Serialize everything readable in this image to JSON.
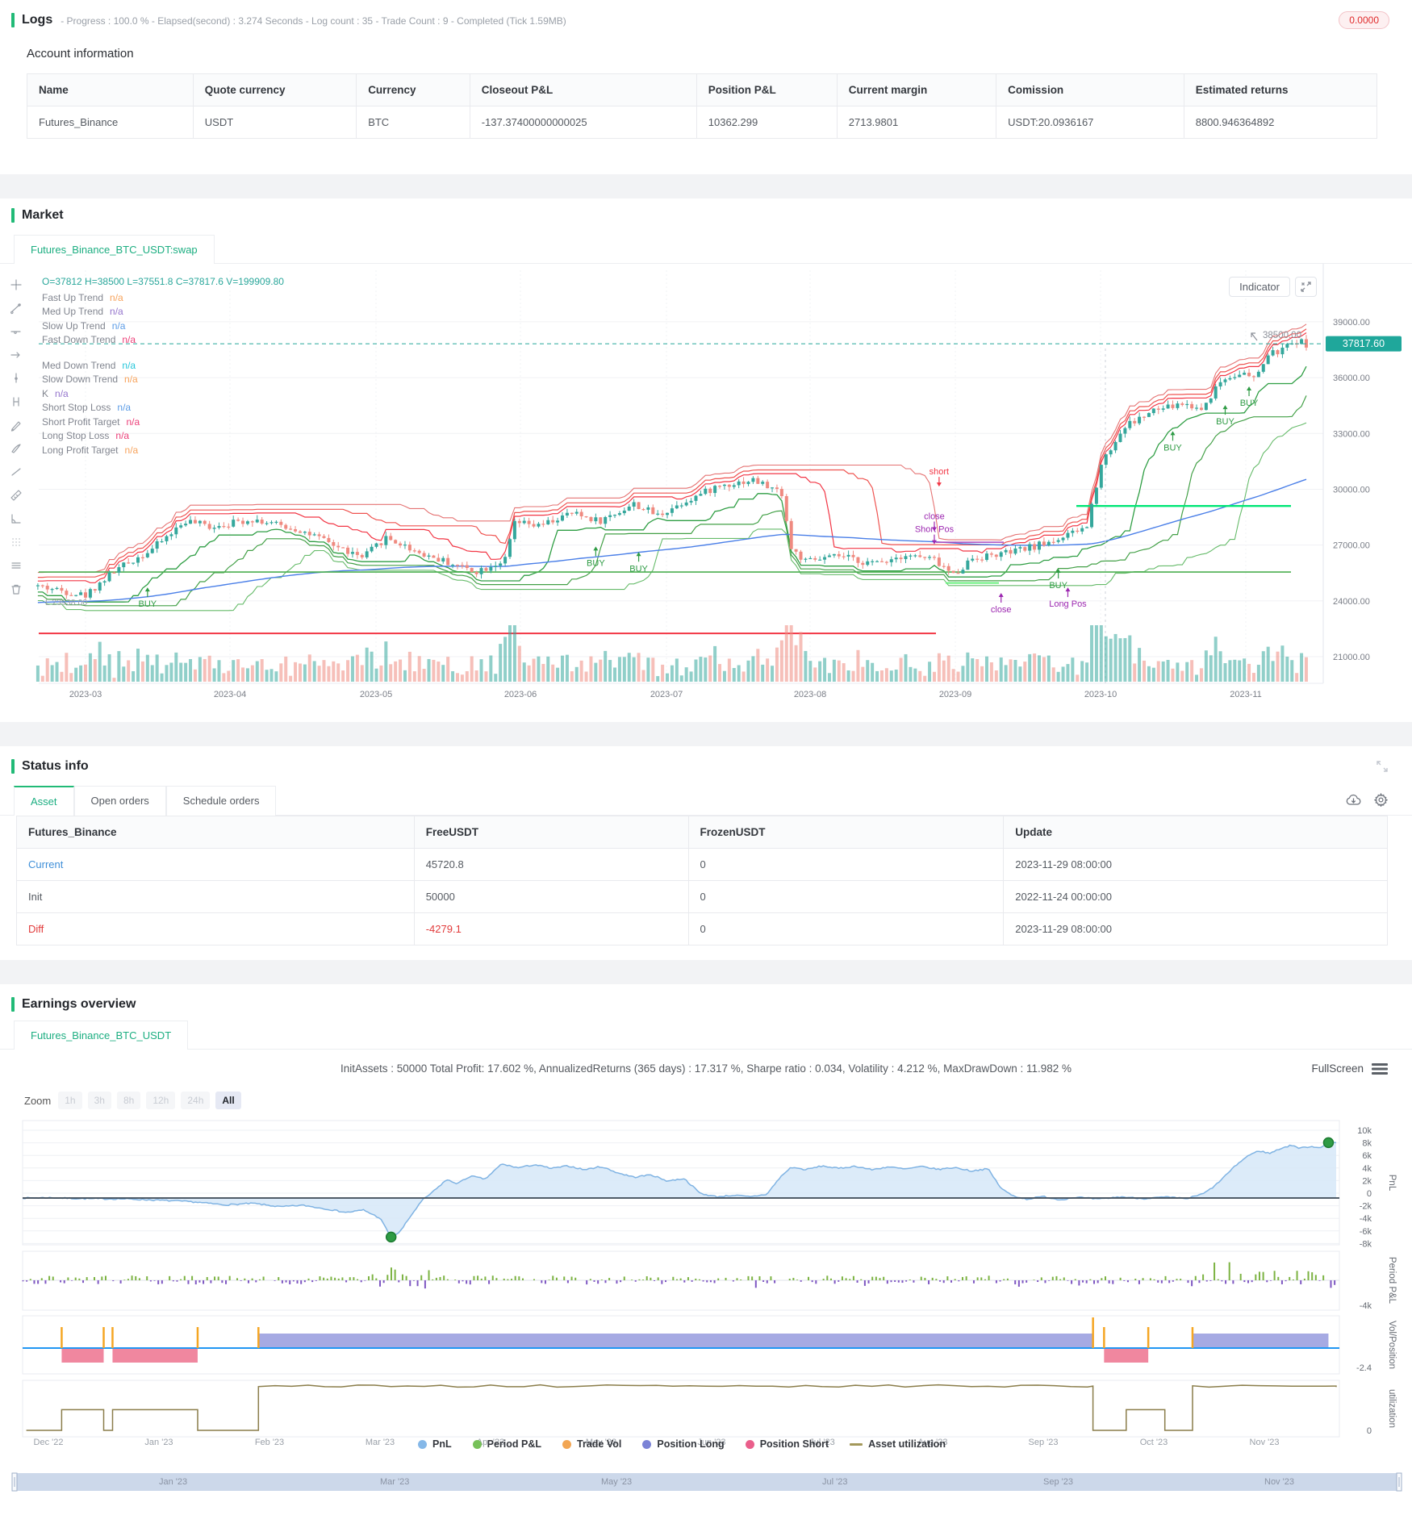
{
  "logs": {
    "title": "Logs",
    "meta": "- Progress : 100.0 % - Elapsed(second) : 3.274  Seconds - Log count : 35 - Trade Count : 9 - Completed (Tick 1.59MB)",
    "badge": "0.0000",
    "subtitle": "Account information",
    "table": {
      "headers": [
        "Name",
        "Quote currency",
        "Currency",
        "Closeout P&L",
        "Position P&L",
        "Current margin",
        "Comission",
        "Estimated returns"
      ],
      "row": [
        "Futures_Binance",
        "USDT",
        "BTC",
        "-137.37400000000025",
        "10362.299",
        "2713.9801",
        "USDT:20.0936167",
        "8800.946364892"
      ]
    }
  },
  "market": {
    "title": "Market",
    "tab": "Futures_Binance_BTC_USDT:swap",
    "indicator_button": "Indicator",
    "legend_rows": [
      {
        "label": "Fast Up Trend",
        "value": "n/a",
        "color": "#f7a35c"
      },
      {
        "label": "Med Up Trend",
        "value": "n/a",
        "color": "#9575cd"
      },
      {
        "label": "Slow Up Trend",
        "value": "n/a",
        "color": "#5c9ce6"
      },
      {
        "label": "Fast Down Trend",
        "value": "n/a",
        "color": "#ec4079"
      },
      {
        "label": "Med Down Trend",
        "value": "n/a",
        "color": "#26c6da"
      },
      {
        "label": "Slow Down Trend",
        "value": "n/a",
        "color": "#f7a35c"
      },
      {
        "label": "K",
        "value": "n/a",
        "color": "#9575cd"
      },
      {
        "label": "Short Stop Loss",
        "value": "n/a",
        "color": "#5c9ce6"
      },
      {
        "label": "Short Profit Target",
        "value": "n/a",
        "color": "#ec4079"
      },
      {
        "label": "Long Stop Loss",
        "value": "n/a",
        "color": "#ec4079"
      },
      {
        "label": "Long Profit Target",
        "value": "n/a",
        "color": "#f7a35c"
      }
    ]
  },
  "status": {
    "title": "Status info",
    "tabs": [
      "Asset",
      "Open orders",
      "Schedule orders"
    ],
    "table": {
      "headers": [
        "Futures_Binance",
        "FreeUSDT",
        "FrozenUSDT",
        "Update"
      ],
      "rows": [
        {
          "name": "Current",
          "free": "45720.8",
          "frozen": "0",
          "update": "2023-11-29 08:00:00"
        },
        {
          "name": "Init",
          "free": "50000",
          "frozen": "0",
          "update": "2022-11-24 00:00:00"
        },
        {
          "name": "Diff",
          "free": "-4279.1",
          "frozen": "0",
          "update": "2023-11-29 08:00:00"
        }
      ]
    }
  },
  "earnings": {
    "title": "Earnings overview",
    "tab": "Futures_Binance_BTC_USDT",
    "stats": "InitAssets : 50000 Total Profit: 17.602 %, AnnualizedReturns (365 days) : 17.317 %, Sharpe ratio : 0.034, Volatility : 4.212 %, MaxDrawDown : 11.982 %",
    "fullscreen_label": "FullScreen",
    "zoom_label": "Zoom",
    "zoom_buttons": [
      "1h",
      "3h",
      "8h",
      "12h",
      "24h",
      "All"
    ],
    "active_zoom": "All"
  },
  "chart_data": [
    {
      "type": "candlestick",
      "symbol": "Futures_Binance_BTC_USDT:swap",
      "ohlc_text": "O=37812 H=38500 L=37551.8 C=37817.6 V=199909.80",
      "ohlc": {
        "open": 37812,
        "high": 38500,
        "low": 37551.8,
        "close": 37817.6,
        "volume": 199909.8
      },
      "last_price": 37817.6,
      "last_price_label": "37817.60",
      "high_annotation": "38500.00",
      "low_annotation": "L 23938.00",
      "y_ticks": [
        "39000.00",
        "36000.00",
        "33000.00",
        "30000.00",
        "27000.00",
        "24000.00",
        "21000.00"
      ],
      "y_tick_values": [
        39000,
        36000,
        33000,
        30000,
        27000,
        24000,
        21000
      ],
      "x_ticks": [
        "2023-03",
        "2023-04",
        "2023-05",
        "2023-06",
        "2023-07",
        "2023-08",
        "2023-09",
        "2023-10",
        "2023-11"
      ],
      "price_path_day_pricek": [
        [
          -10,
          24.8
        ],
        [
          0,
          24.3
        ],
        [
          6,
          25.6
        ],
        [
          14,
          26.8
        ],
        [
          21,
          28.3
        ],
        [
          26,
          28.0
        ],
        [
          35,
          28.4
        ],
        [
          45,
          27.8
        ],
        [
          52,
          27.0
        ],
        [
          58,
          26.3
        ],
        [
          63,
          27.4
        ],
        [
          70,
          26.6
        ],
        [
          78,
          25.9
        ],
        [
          82,
          25.6
        ],
        [
          88,
          26.2
        ],
        [
          90,
          28.2
        ],
        [
          95,
          28.0
        ],
        [
          102,
          28.7
        ],
        [
          108,
          28.3
        ],
        [
          115,
          29.2
        ],
        [
          120,
          28.6
        ],
        [
          126,
          29.4
        ],
        [
          133,
          30.2
        ],
        [
          140,
          30.5
        ],
        [
          146,
          29.8
        ],
        [
          148,
          26.8
        ],
        [
          151,
          26.1
        ],
        [
          158,
          26.4
        ],
        [
          165,
          26.0
        ],
        [
          172,
          26.5
        ],
        [
          178,
          26.2
        ],
        [
          182,
          25.4
        ],
        [
          186,
          26.3
        ],
        [
          194,
          26.6
        ],
        [
          200,
          27.0
        ],
        [
          206,
          27.5
        ],
        [
          210,
          28.0
        ],
        [
          213,
          31.4
        ],
        [
          218,
          33.4
        ],
        [
          224,
          34.2
        ],
        [
          230,
          34.6
        ],
        [
          234,
          34.3
        ],
        [
          238,
          35.8
        ],
        [
          242,
          36.3
        ],
        [
          245,
          35.9
        ],
        [
          248,
          37.2
        ],
        [
          251,
          37.5
        ],
        [
          254,
          38.0
        ],
        [
          256,
          37.8
        ]
      ],
      "levels": {
        "red_support_k": 22.25,
        "green_support_k": 25.55,
        "green_resistance_k": 29.1,
        "green_minor_k": 24.96,
        "purple_minor_k": 27.15
      },
      "markers": [
        {
          "d": 13,
          "p": 24.9,
          "text": "BUY",
          "kind": "buy",
          "dir": "up"
        },
        {
          "d": 107,
          "p": 27.1,
          "text": "BUY",
          "kind": "buy",
          "dir": "up"
        },
        {
          "d": 116,
          "p": 26.8,
          "text": "BUY",
          "kind": "buy",
          "dir": "up"
        },
        {
          "d": 179,
          "p": 30.1,
          "text": "short",
          "kind": "short",
          "dir": "down"
        },
        {
          "d": 178,
          "p": 27.7,
          "text": "close",
          "kind": "pos",
          "dir": "down"
        },
        {
          "d": 178,
          "p": 27.0,
          "text": "Short Pos",
          "kind": "pos",
          "dir": "down"
        },
        {
          "d": 192,
          "p": 24.6,
          "text": "close",
          "kind": "pos",
          "dir": "up"
        },
        {
          "d": 206,
          "p": 24.9,
          "text": "Long Pos",
          "kind": "pos",
          "dir": "up"
        },
        {
          "d": 204,
          "p": 25.9,
          "text": "BUY",
          "kind": "buy",
          "dir": "up"
        },
        {
          "d": 228,
          "p": 33.3,
          "text": "BUY",
          "kind": "buy",
          "dir": "up"
        },
        {
          "d": 239,
          "p": 34.7,
          "text": "BUY",
          "kind": "buy",
          "dir": "up"
        },
        {
          "d": 244,
          "p": 35.7,
          "text": "BUY",
          "kind": "buy",
          "dir": "up"
        }
      ]
    },
    {
      "type": "performance-panes",
      "pnl": {
        "label": "PnL",
        "ticks": [
          "10k",
          "8k",
          "6k",
          "4k",
          "2k",
          "0",
          "-2k",
          "-4k",
          "-6k",
          "-8k"
        ],
        "anchors_month_k": [
          [
            -0.23,
            0
          ],
          [
            0,
            0.05
          ],
          [
            0.3,
            -0.1
          ],
          [
            0.7,
            -0.15
          ],
          [
            1.0,
            -0.35
          ],
          [
            1.3,
            -0.6
          ],
          [
            1.6,
            -1.1
          ],
          [
            1.85,
            -0.85
          ],
          [
            2.1,
            -1.4
          ],
          [
            2.3,
            -1.15
          ],
          [
            2.5,
            -1.7
          ],
          [
            2.7,
            -2.3
          ],
          [
            2.85,
            -1.9
          ],
          [
            3.0,
            -3.2
          ],
          [
            3.1,
            -6.2
          ],
          [
            3.18,
            -5.4
          ],
          [
            3.28,
            -2.8
          ],
          [
            3.38,
            -0.4
          ],
          [
            3.5,
            1.3
          ],
          [
            3.6,
            2.9
          ],
          [
            3.7,
            2.3
          ],
          [
            3.82,
            3.5
          ],
          [
            3.95,
            3.0
          ],
          [
            4.1,
            5.4
          ],
          [
            4.25,
            4.8
          ],
          [
            4.4,
            5.3
          ],
          [
            4.55,
            4.7
          ],
          [
            4.7,
            5.1
          ],
          [
            4.85,
            4.5
          ],
          [
            5.0,
            5.0
          ],
          [
            5.15,
            4.0
          ],
          [
            5.3,
            3.3
          ],
          [
            5.45,
            3.7
          ],
          [
            5.6,
            2.7
          ],
          [
            5.75,
            3.1
          ],
          [
            5.9,
            0.7
          ],
          [
            6.05,
            0.2
          ],
          [
            6.2,
            0.45
          ],
          [
            6.35,
            0.2
          ],
          [
            6.5,
            0.6
          ],
          [
            6.62,
            3.3
          ],
          [
            6.72,
            4.9
          ],
          [
            6.85,
            4.5
          ],
          [
            7.0,
            5.1
          ],
          [
            7.15,
            4.7
          ],
          [
            7.3,
            5.05
          ],
          [
            7.45,
            4.5
          ],
          [
            7.6,
            4.95
          ],
          [
            7.75,
            4.6
          ],
          [
            7.9,
            5.0
          ],
          [
            8.05,
            4.55
          ],
          [
            8.2,
            4.85
          ],
          [
            8.35,
            4.3
          ],
          [
            8.5,
            4.65
          ],
          [
            8.62,
            1.5
          ],
          [
            8.72,
            0.4
          ],
          [
            8.85,
            -0.2
          ],
          [
            9.0,
            0.25
          ],
          [
            9.15,
            -0.3
          ],
          [
            9.3,
            0.15
          ],
          [
            9.5,
            -0.2
          ],
          [
            9.7,
            0.2
          ],
          [
            9.9,
            -0.1
          ],
          [
            10.1,
            0.15
          ],
          [
            10.3,
            -0.1
          ],
          [
            10.45,
            0.7
          ],
          [
            10.55,
            1.9
          ],
          [
            10.65,
            3.6
          ],
          [
            10.75,
            5.3
          ],
          [
            10.85,
            6.7
          ],
          [
            10.95,
            7.5
          ],
          [
            11.05,
            7.1
          ],
          [
            11.15,
            7.9
          ],
          [
            11.25,
            8.4
          ],
          [
            11.32,
            7.9
          ],
          [
            11.42,
            8.2
          ],
          [
            11.5,
            8.0
          ],
          [
            11.58,
            8.8
          ]
        ],
        "dots_month_k": [
          [
            3.1,
            -6.2
          ],
          [
            11.58,
            8.8
          ]
        ]
      },
      "period_pnl": {
        "label": "Period P&L",
        "min_tick": "-4k"
      },
      "vol_position": {
        "label": "Vol/Position",
        "min_tick": "-2.4",
        "long_segments": [
          [
            1.9,
            9.45
          ],
          [
            10.35,
            11.58
          ]
        ],
        "short_segments": [
          [
            0.12,
            0.5
          ],
          [
            0.58,
            1.35
          ],
          [
            9.55,
            9.95
          ]
        ],
        "trade_spikes": [
          0.12,
          0.5,
          0.58,
          1.35,
          1.9,
          9.45,
          9.55,
          9.95,
          10.35
        ]
      },
      "utilization": {
        "label": "utilization",
        "min_tick": "0",
        "steps_month_value": [
          [
            -0.2,
            0
          ],
          [
            0.12,
            0.42
          ],
          [
            0.5,
            0
          ],
          [
            0.58,
            0.42
          ],
          [
            1.35,
            0
          ],
          [
            1.9,
            0.9
          ],
          [
            9.45,
            0
          ],
          [
            9.75,
            0.42
          ],
          [
            10.1,
            0
          ],
          [
            10.35,
            0.9
          ],
          [
            11.65,
            0.88
          ]
        ]
      },
      "x_ticks": [
        "Dec '22",
        "Jan '23",
        "Feb '23",
        "Mar '23",
        "Apr '23",
        "May '23",
        "Jun '23",
        "Jul '23",
        "Aug '23",
        "Sep '23",
        "Oct '23",
        "Nov '23"
      ],
      "legend": [
        {
          "label": "PnL",
          "color": "#85b8e8",
          "type": "dot"
        },
        {
          "label": "Period P&L",
          "color": "#77c159",
          "type": "dot"
        },
        {
          "label": "Trade Vol",
          "color": "#f2a654",
          "type": "dot"
        },
        {
          "label": "Position Long",
          "color": "#7b83d6",
          "type": "dot"
        },
        {
          "label": "Position Short",
          "color": "#ea5f8b",
          "type": "dot"
        },
        {
          "label": "Asset utilization",
          "color": "#a3985a",
          "type": "line"
        }
      ],
      "navigator_ticks": [
        "Jan '23",
        "Mar '23",
        "May '23",
        "Jul '23",
        "Sep '23",
        "Nov '23"
      ]
    }
  ],
  "colors": {
    "up_candle": "#35a79c",
    "down_candle": "#ef8a80",
    "accent_green": "#21ba77",
    "price_tag": "#1fa79b",
    "link_blue": "#3f8fd8",
    "danger_red": "#e23b3b"
  }
}
